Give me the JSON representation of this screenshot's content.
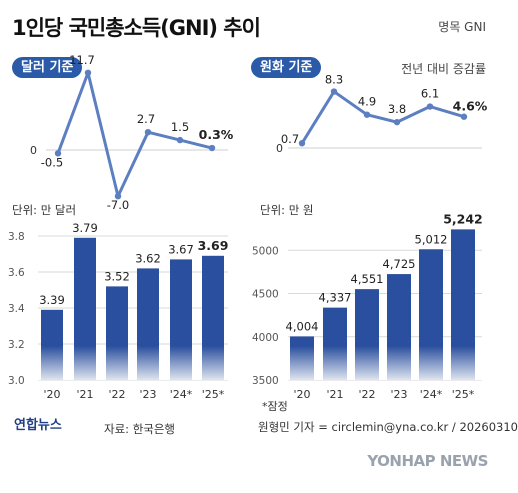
{
  "header": {
    "title": "1인당 국민총소득(GNI) 추이",
    "note": "명목 GNI"
  },
  "sections": {
    "usd_label": "달러 기준",
    "krw_label": "원화 기준",
    "krw_note": "전년 대비 증감률"
  },
  "footer": {
    "prelim_note": "*잠정",
    "logo_text": "연합뉴스",
    "source": "자료: 한국은행",
    "credit": "원형민 기자 = circlemin@yna.co.kr / 20260310",
    "watermark": "YONHAP NEWS"
  },
  "colors": {
    "line": "#5b7fc0",
    "bar": "#2a4f9e",
    "pill": "#2a5aa8"
  },
  "chart_data": [
    {
      "id": "usd_growth",
      "type": "line",
      "x": [
        "'20",
        "'21",
        "'22",
        "'23",
        "'24*",
        "'25*"
      ],
      "values": [
        -0.5,
        11.7,
        -7.0,
        2.7,
        1.5,
        0.3
      ],
      "labels": [
        "-0.5",
        "11.7",
        "-7.0",
        "2.7",
        "1.5",
        "0.3%"
      ],
      "zero_label": "0",
      "ylim": [
        -8,
        13
      ]
    },
    {
      "id": "krw_growth",
      "type": "line",
      "x": [
        "'20",
        "'21",
        "'22",
        "'23",
        "'24*",
        "'25*"
      ],
      "values": [
        0.7,
        8.3,
        4.9,
        3.8,
        6.1,
        4.6
      ],
      "labels": [
        "0.7",
        "8.3",
        "4.9",
        "3.8",
        "6.1",
        "4.6%"
      ],
      "zero_label": "0",
      "ylim": [
        0,
        10
      ]
    },
    {
      "id": "usd_level",
      "type": "bar",
      "unit_label": "단위: 만 달러",
      "categories": [
        "'20",
        "'21",
        "'22",
        "'23",
        "'24*",
        "'25*"
      ],
      "values": [
        3.39,
        3.79,
        3.52,
        3.62,
        3.67,
        3.69
      ],
      "labels": [
        "3.39",
        "3.79",
        "3.52",
        "3.62",
        "3.67",
        "3.69"
      ],
      "ylim": [
        3.0,
        3.8
      ],
      "ticks": [
        "3.0",
        "3.2",
        "3.4",
        "3.6",
        "3.8"
      ],
      "grid": true
    },
    {
      "id": "krw_level",
      "type": "bar",
      "unit_label": "단위: 만 원",
      "categories": [
        "'20",
        "'21",
        "'22",
        "'23",
        "'24*",
        "'25*"
      ],
      "values": [
        4004,
        4337,
        4551,
        4725,
        5012,
        5242
      ],
      "labels": [
        "4,004",
        "4,337",
        "4,551",
        "4,725",
        "5,012",
        "5,242"
      ],
      "ylim": [
        3500,
        5200
      ],
      "ticks": [
        "3500",
        "4000",
        "4500",
        "5000"
      ],
      "grid": true
    }
  ]
}
